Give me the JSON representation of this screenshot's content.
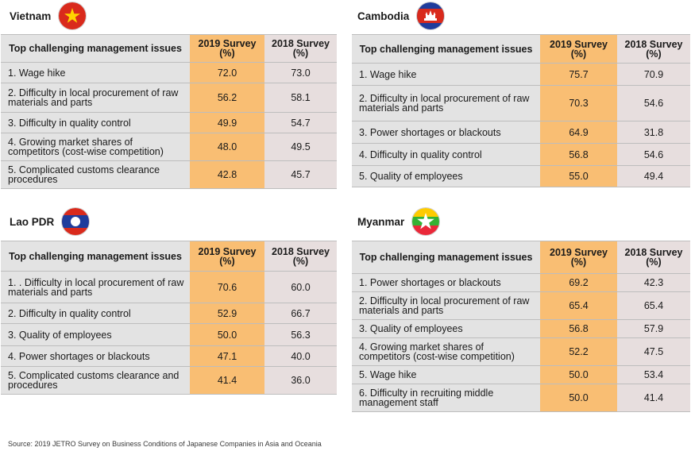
{
  "header": {
    "issue": "Top challenging management issues",
    "y2019": "2019 Survey\n(%)",
    "y2018": "2018 Survey\n(%)"
  },
  "panels": [
    {
      "country": "Vietnam",
      "flag": "vietnam-flag-icon",
      "rows": [
        {
          "issue": "1. Wage hike",
          "y2019": "72.0",
          "y2018": "73.0"
        },
        {
          "issue": "2. Difficulty in local procurement of raw materials and parts",
          "y2019": "56.2",
          "y2018": "58.1"
        },
        {
          "issue": "3. Difficulty in quality control",
          "y2019": "49.9",
          "y2018": "54.7"
        },
        {
          "issue": "4. Growing market shares of competitors (cost-wise competition)",
          "y2019": "48.0",
          "y2018": "49.5"
        },
        {
          "issue": "5. Complicated customs clearance procedures",
          "y2019": "42.8",
          "y2018": "45.7"
        }
      ]
    },
    {
      "country": "Cambodia",
      "flag": "cambodia-flag-icon",
      "rows": [
        {
          "issue": "1. Wage hike",
          "y2019": "75.7",
          "y2018": "70.9"
        },
        {
          "issue": "2. Difficulty in local procurement of raw materials and parts",
          "y2019": "70.3",
          "y2018": "54.6"
        },
        {
          "issue": "3. Power shortages or blackouts",
          "y2019": "64.9",
          "y2018": "31.8"
        },
        {
          "issue": "4. Difficulty in quality control",
          "y2019": "56.8",
          "y2018": "54.6"
        },
        {
          "issue": "5. Quality of employees",
          "y2019": "55.0",
          "y2018": "49.4"
        }
      ]
    },
    {
      "country": "Lao PDR",
      "flag": "laos-flag-icon",
      "rows": [
        {
          "issue": "1. . Difficulty in local procurement of raw materials and parts",
          "y2019": "70.6",
          "y2018": "60.0"
        },
        {
          "issue": "2. Difficulty in quality control",
          "y2019": "52.9",
          "y2018": "66.7"
        },
        {
          "issue": "3. Quality of employees",
          "y2019": "50.0",
          "y2018": "56.3"
        },
        {
          "issue": "4. Power shortages or blackouts",
          "y2019": "47.1",
          "y2018": "40.0"
        },
        {
          "issue": "5. Complicated customs clearance and procedures",
          "y2019": "41.4",
          "y2018": "36.0"
        }
      ]
    },
    {
      "country": "Myanmar",
      "flag": "myanmar-flag-icon",
      "rows": [
        {
          "issue": "1. Power shortages or blackouts",
          "y2019": "69.2",
          "y2018": "42.3"
        },
        {
          "issue": "2. Difficulty in local procurement of raw materials and parts",
          "y2019": "65.4",
          "y2018": "65.4"
        },
        {
          "issue": "3. Quality of employees",
          "y2019": "56.8",
          "y2018": "57.9"
        },
        {
          "issue": "4. Growing market shares of competitors (cost-wise competition)",
          "y2019": "52.2",
          "y2018": "47.5"
        },
        {
          "issue": "5. Wage hike",
          "y2019": "50.0",
          "y2018": "53.4"
        },
        {
          "issue": "6. Difficulty in recruiting middle management staff",
          "y2019": "50.0",
          "y2018": "41.4"
        }
      ]
    }
  ],
  "source": "Source: 2019 JETRO Survey on Business Conditions of Japanese Companies in Asia and Oceania",
  "colors": {
    "survey_2019": "#f9be73",
    "survey_2018": "#e7dede",
    "issue_column": "#e3e3e3"
  }
}
